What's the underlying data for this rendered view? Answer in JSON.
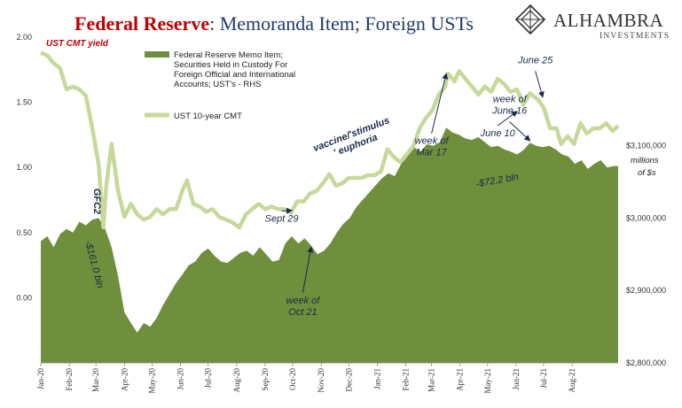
{
  "header": {
    "title_main": "Federal Reserve",
    "title_rest": ": Memoranda Item; Foreign USTs",
    "brand_name": "ALHAMBRA",
    "brand_sub": "INVESTMENTS"
  },
  "colors": {
    "title_red": "#c00000",
    "title_navy": "#1f3a6e",
    "area_fill": "#6f8f3c",
    "yield_line": "#c6d99a",
    "annotation_red": "#c00000",
    "annotation_dark": "#1b2a4a",
    "brand": "#333333"
  },
  "chart_data": {
    "type": "area",
    "left_axis": {
      "label": "UST CMT yield",
      "ticks": [
        "2.00",
        "1.50",
        "1.00",
        "0.50",
        "0.00"
      ],
      "range": [
        -0.5,
        2.0
      ]
    },
    "right_axis": {
      "label_line1": "millions",
      "label_line2": "of $s",
      "ticks": [
        "$3,100,000",
        "$3,000,000",
        "$2,900,000",
        "$2,800,000"
      ],
      "range": [
        2800000,
        3250000
      ]
    },
    "x_axis": {
      "tick_labels": [
        "Jan-20",
        "Feb-20",
        "Mar-20",
        "Apr-20",
        "May-20",
        "Jun-20",
        "Jul-20",
        "Aug-20",
        "Sep-20",
        "Oct-20",
        "Nov-20",
        "Dec-20",
        "Jan-21",
        "Feb-21",
        "Mar-21",
        "Apr-21",
        "May-21",
        "Jun-21",
        "Jul-21",
        "Aug-21"
      ],
      "range": [
        "2020-01-01",
        "2021-09-20"
      ]
    },
    "series": [
      {
        "name": "Federal Reserve Memo Item; Securities Held in Custody For Foreign Official and International Accounts; UST's - RHS",
        "legend_lines": [
          "Federal Reserve Memo Item;",
          "Securities Held in Custody For",
          "Foreign Official and International",
          "Accounts; UST's - RHS"
        ],
        "type": "area",
        "axis": "right",
        "points": [
          [
            "2020-01-01",
            2968000
          ],
          [
            "2020-01-08",
            2975000
          ],
          [
            "2020-01-15",
            2960000
          ],
          [
            "2020-01-22",
            2978000
          ],
          [
            "2020-01-29",
            2985000
          ],
          [
            "2020-02-05",
            2980000
          ],
          [
            "2020-02-12",
            2995000
          ],
          [
            "2020-02-19",
            2990000
          ],
          [
            "2020-02-26",
            2998000
          ],
          [
            "2020-03-04",
            3000000
          ],
          [
            "2020-03-11",
            2985000
          ],
          [
            "2020-03-18",
            2960000
          ],
          [
            "2020-03-25",
            2920000
          ],
          [
            "2020-04-01",
            2870000
          ],
          [
            "2020-04-08",
            2855000
          ],
          [
            "2020-04-15",
            2842000
          ],
          [
            "2020-04-22",
            2855000
          ],
          [
            "2020-04-29",
            2850000
          ],
          [
            "2020-05-06",
            2862000
          ],
          [
            "2020-05-13",
            2880000
          ],
          [
            "2020-05-20",
            2895000
          ],
          [
            "2020-05-27",
            2910000
          ],
          [
            "2020-06-03",
            2922000
          ],
          [
            "2020-06-10",
            2935000
          ],
          [
            "2020-06-17",
            2940000
          ],
          [
            "2020-06-24",
            2952000
          ],
          [
            "2020-07-01",
            2958000
          ],
          [
            "2020-07-08",
            2948000
          ],
          [
            "2020-07-15",
            2940000
          ],
          [
            "2020-07-22",
            2938000
          ],
          [
            "2020-07-29",
            2945000
          ],
          [
            "2020-08-05",
            2952000
          ],
          [
            "2020-08-12",
            2955000
          ],
          [
            "2020-08-19",
            2948000
          ],
          [
            "2020-08-26",
            2960000
          ],
          [
            "2020-09-02",
            2950000
          ],
          [
            "2020-09-09",
            2940000
          ],
          [
            "2020-09-16",
            2942000
          ],
          [
            "2020-09-23",
            2965000
          ],
          [
            "2020-09-30",
            2975000
          ],
          [
            "2020-10-07",
            2965000
          ],
          [
            "2020-10-14",
            2972000
          ],
          [
            "2020-10-21",
            2962000
          ],
          [
            "2020-10-28",
            2950000
          ],
          [
            "2020-11-04",
            2955000
          ],
          [
            "2020-11-11",
            2965000
          ],
          [
            "2020-11-18",
            2980000
          ],
          [
            "2020-11-25",
            2992000
          ],
          [
            "2020-12-02",
            3000000
          ],
          [
            "2020-12-09",
            3015000
          ],
          [
            "2020-12-16",
            3025000
          ],
          [
            "2020-12-23",
            3035000
          ],
          [
            "2020-12-30",
            3045000
          ],
          [
            "2021-01-06",
            3055000
          ],
          [
            "2021-01-13",
            3062000
          ],
          [
            "2021-01-20",
            3058000
          ],
          [
            "2021-01-27",
            3075000
          ],
          [
            "2021-02-03",
            3090000
          ],
          [
            "2021-02-10",
            3098000
          ],
          [
            "2021-02-17",
            3092000
          ],
          [
            "2021-02-24",
            3102000
          ],
          [
            "2021-03-03",
            3100000
          ],
          [
            "2021-03-10",
            3105000
          ],
          [
            "2021-03-17",
            3125000
          ],
          [
            "2021-03-24",
            3118000
          ],
          [
            "2021-03-31",
            3115000
          ],
          [
            "2021-04-07",
            3110000
          ],
          [
            "2021-04-14",
            3108000
          ],
          [
            "2021-04-21",
            3112000
          ],
          [
            "2021-04-28",
            3105000
          ],
          [
            "2021-05-05",
            3098000
          ],
          [
            "2021-05-12",
            3100000
          ],
          [
            "2021-05-19",
            3095000
          ],
          [
            "2021-05-26",
            3092000
          ],
          [
            "2021-06-02",
            3088000
          ],
          [
            "2021-06-09",
            3094000
          ],
          [
            "2021-06-16",
            3104000
          ],
          [
            "2021-06-23",
            3100000
          ],
          [
            "2021-06-30",
            3098000
          ],
          [
            "2021-07-07",
            3100000
          ],
          [
            "2021-07-14",
            3095000
          ],
          [
            "2021-07-21",
            3088000
          ],
          [
            "2021-07-28",
            3085000
          ],
          [
            "2021-08-04",
            3075000
          ],
          [
            "2021-08-11",
            3080000
          ],
          [
            "2021-08-18",
            3068000
          ],
          [
            "2021-08-25",
            3075000
          ],
          [
            "2021-09-01",
            3080000
          ],
          [
            "2021-09-08",
            3070000
          ],
          [
            "2021-09-15",
            3072000
          ],
          [
            "2021-09-20",
            3072000
          ]
        ]
      },
      {
        "name": "UST 10-year CMT",
        "type": "line",
        "axis": "left",
        "points": [
          [
            "2020-01-01",
            1.88
          ],
          [
            "2020-01-08",
            1.86
          ],
          [
            "2020-01-15",
            1.8
          ],
          [
            "2020-01-22",
            1.76
          ],
          [
            "2020-01-29",
            1.6
          ],
          [
            "2020-02-05",
            1.62
          ],
          [
            "2020-02-12",
            1.6
          ],
          [
            "2020-02-19",
            1.55
          ],
          [
            "2020-02-26",
            1.3
          ],
          [
            "2020-03-04",
            1.02
          ],
          [
            "2020-03-09",
            0.54
          ],
          [
            "2020-03-12",
            0.85
          ],
          [
            "2020-03-18",
            1.18
          ],
          [
            "2020-03-25",
            0.82
          ],
          [
            "2020-04-01",
            0.62
          ],
          [
            "2020-04-08",
            0.72
          ],
          [
            "2020-04-15",
            0.64
          ],
          [
            "2020-04-22",
            0.6
          ],
          [
            "2020-04-29",
            0.62
          ],
          [
            "2020-05-06",
            0.68
          ],
          [
            "2020-05-13",
            0.64
          ],
          [
            "2020-05-20",
            0.68
          ],
          [
            "2020-05-27",
            0.68
          ],
          [
            "2020-06-03",
            0.82
          ],
          [
            "2020-06-08",
            0.9
          ],
          [
            "2020-06-15",
            0.72
          ],
          [
            "2020-06-22",
            0.7
          ],
          [
            "2020-06-29",
            0.66
          ],
          [
            "2020-07-06",
            0.68
          ],
          [
            "2020-07-13",
            0.62
          ],
          [
            "2020-07-20",
            0.6
          ],
          [
            "2020-07-27",
            0.58
          ],
          [
            "2020-08-04",
            0.54
          ],
          [
            "2020-08-11",
            0.64
          ],
          [
            "2020-08-18",
            0.68
          ],
          [
            "2020-08-25",
            0.72
          ],
          [
            "2020-09-01",
            0.68
          ],
          [
            "2020-09-08",
            0.7
          ],
          [
            "2020-09-15",
            0.68
          ],
          [
            "2020-09-22",
            0.68
          ],
          [
            "2020-09-29",
            0.65
          ],
          [
            "2020-10-06",
            0.74
          ],
          [
            "2020-10-13",
            0.74
          ],
          [
            "2020-10-20",
            0.8
          ],
          [
            "2020-10-27",
            0.82
          ],
          [
            "2020-11-03",
            0.88
          ],
          [
            "2020-11-10",
            0.95
          ],
          [
            "2020-11-17",
            0.86
          ],
          [
            "2020-11-24",
            0.88
          ],
          [
            "2020-12-01",
            0.92
          ],
          [
            "2020-12-08",
            0.92
          ],
          [
            "2020-12-15",
            0.92
          ],
          [
            "2020-12-22",
            0.94
          ],
          [
            "2020-12-29",
            0.94
          ],
          [
            "2021-01-05",
            0.97
          ],
          [
            "2021-01-12",
            1.14
          ],
          [
            "2021-01-19",
            1.08
          ],
          [
            "2021-01-26",
            1.04
          ],
          [
            "2021-02-02",
            1.1
          ],
          [
            "2021-02-09",
            1.16
          ],
          [
            "2021-02-16",
            1.3
          ],
          [
            "2021-02-23",
            1.38
          ],
          [
            "2021-03-02",
            1.44
          ],
          [
            "2021-03-09",
            1.56
          ],
          [
            "2021-03-16",
            1.62
          ],
          [
            "2021-03-19",
            1.72
          ],
          [
            "2021-03-26",
            1.66
          ],
          [
            "2021-03-31",
            1.74
          ],
          [
            "2021-04-07",
            1.68
          ],
          [
            "2021-04-14",
            1.62
          ],
          [
            "2021-04-21",
            1.56
          ],
          [
            "2021-04-28",
            1.62
          ],
          [
            "2021-05-05",
            1.58
          ],
          [
            "2021-05-12",
            1.68
          ],
          [
            "2021-05-19",
            1.64
          ],
          [
            "2021-05-26",
            1.58
          ],
          [
            "2021-06-02",
            1.6
          ],
          [
            "2021-06-09",
            1.48
          ],
          [
            "2021-06-16",
            1.57
          ],
          [
            "2021-06-25",
            1.52
          ],
          [
            "2021-07-01",
            1.46
          ],
          [
            "2021-07-08",
            1.3
          ],
          [
            "2021-07-15",
            1.3
          ],
          [
            "2021-07-20",
            1.18
          ],
          [
            "2021-07-27",
            1.24
          ],
          [
            "2021-08-03",
            1.18
          ],
          [
            "2021-08-10",
            1.34
          ],
          [
            "2021-08-17",
            1.26
          ],
          [
            "2021-08-24",
            1.3
          ],
          [
            "2021-08-31",
            1.3
          ],
          [
            "2021-09-07",
            1.34
          ],
          [
            "2021-09-14",
            1.28
          ],
          [
            "2021-09-20",
            1.32
          ]
        ]
      }
    ],
    "annotations": [
      {
        "id": "gfc2",
        "text": "GFC2",
        "at": [
          "2020-02-28",
          0.74
        ],
        "color": "#c00000",
        "rotate": 90
      },
      {
        "id": "drop",
        "text": "-$161.0 bln",
        "at": [
          "2020-02-25",
          2935000
        ],
        "rotate": 75
      },
      {
        "id": "sept29",
        "text": "Sept 29",
        "at": [
          "2020-09-19",
          2995000
        ],
        "arrow_to": [
          "2020-09-30",
          0.67
        ]
      },
      {
        "id": "oct21",
        "lines": [
          "week of",
          "Oct 21"
        ],
        "at": [
          "2020-10-12",
          2882000
        ],
        "arrow_to": [
          "2020-10-21",
          2960000
        ]
      },
      {
        "id": "vaccine",
        "lines": [
          "vaccine/'stimulus",
          "' euphoria"
        ],
        "at": [
          "2020-12-05",
          3112000
        ],
        "rotate": -21
      },
      {
        "id": "mar17",
        "lines": [
          "week of",
          "Mar 17"
        ],
        "at": [
          "2021-03-01",
          1.18
        ],
        "arrow_to": [
          "2021-03-17",
          1.72
        ]
      },
      {
        "id": "june25",
        "text": "June 25",
        "at": [
          "2021-06-22",
          1.8
        ],
        "arrow_to": [
          "2021-06-30",
          1.54
        ]
      },
      {
        "id": "june10",
        "text": "June 10",
        "at": [
          "2021-05-12",
          1.24
        ],
        "arrow_to": [
          "2021-06-02",
          1.43
        ]
      },
      {
        "id": "june16",
        "lines": [
          "week of",
          "June 16"
        ],
        "at": [
          "2021-05-25",
          3160000
        ],
        "arrow_to": [
          "2021-06-16",
          3107000
        ]
      },
      {
        "id": "bln722",
        "text": "-$72.2 bln",
        "at": [
          "2021-05-12",
          3048000
        ],
        "rotate": -10
      }
    ]
  }
}
